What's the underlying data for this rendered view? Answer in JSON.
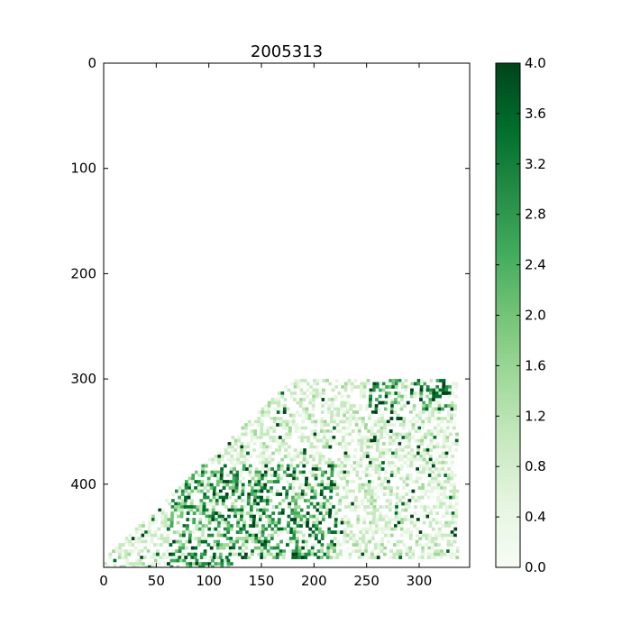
{
  "chart_data": {
    "type": "heatmap",
    "title": "2005313",
    "xlabel": "",
    "ylabel": "",
    "x_range": [
      0,
      348
    ],
    "y_range": [
      479,
      0
    ],
    "x_ticks": [
      0,
      50,
      100,
      150,
      200,
      250,
      300
    ],
    "y_ticks": [
      0,
      100,
      200,
      300,
      400
    ],
    "colormap": "Greens",
    "colorbar": {
      "range": [
        0.0,
        4.0
      ],
      "ticks": [
        "0.0",
        "0.4",
        "0.8",
        "1.2",
        "1.6",
        "2.0",
        "2.4",
        "2.8",
        "3.2",
        "3.6",
        "4.0"
      ]
    },
    "data_extent_note_values": {
      "row_min": 300,
      "row_max": 479,
      "col_min": 0,
      "col_max": 335
    }
  },
  "colors": {
    "low": "#f7fcf5",
    "mid": "#74c476",
    "high": "#00441b",
    "axis": "#000000"
  }
}
